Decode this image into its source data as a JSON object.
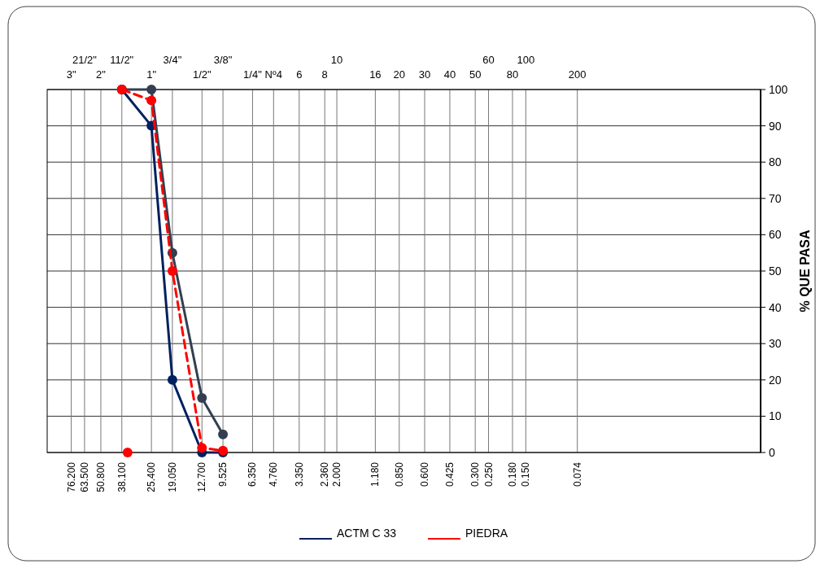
{
  "chart_data": {
    "type": "line",
    "log": "x",
    "xlim": [
      106,
      0.006
    ],
    "ylim": [
      0,
      100
    ],
    "xticks": [
      {
        "value": 76.2,
        "label": "76.200"
      },
      {
        "value": 63.5,
        "label": "63.500"
      },
      {
        "value": 50.8,
        "label": "50.800"
      },
      {
        "value": 38.1,
        "label": "38.100"
      },
      {
        "value": 25.4,
        "label": "25.400"
      },
      {
        "value": 19.05,
        "label": "19.050"
      },
      {
        "value": 12.7,
        "label": "12.700"
      },
      {
        "value": 9.525,
        "label": "9.525"
      },
      {
        "value": 6.35,
        "label": "6.350"
      },
      {
        "value": 4.76,
        "label": "4.760"
      },
      {
        "value": 3.35,
        "label": "3.350"
      },
      {
        "value": 2.36,
        "label": "2.360"
      },
      {
        "value": 2.0,
        "label": "2.000"
      },
      {
        "value": 1.18,
        "label": "1.180"
      },
      {
        "value": 0.85,
        "label": "0.850"
      },
      {
        "value": 0.6,
        "label": "0.600"
      },
      {
        "value": 0.425,
        "label": "0.425"
      },
      {
        "value": 0.3,
        "label": "0.300"
      },
      {
        "value": 0.25,
        "label": "0.250"
      },
      {
        "value": 0.18,
        "label": "0.180"
      },
      {
        "value": 0.15,
        "label": "0.150"
      },
      {
        "value": 0.074,
        "label": "0.074"
      }
    ],
    "annotations": [
      "3\"",
      "21/2\"",
      "2\"",
      "11/2\"",
      "1\"",
      "3/4\"",
      "1/2\"",
      "3/8\"",
      "1/4\"",
      "Nº4",
      "6",
      "8",
      "10",
      "16",
      "20",
      "30",
      "40",
      "50",
      "60",
      "80",
      "100",
      "200"
    ],
    "yticks": [
      0,
      10,
      20,
      30,
      40,
      50,
      60,
      70,
      80,
      90,
      100
    ],
    "ylabel": "% QUE PASA",
    "grid": true,
    "legend": "bottom",
    "marker": "circle",
    "series": [
      {
        "name": "ACTM C 33",
        "color": "#002060",
        "x": [
          38.1,
          25.4,
          19.05,
          12.7,
          9.525
        ],
        "values": [
          100,
          90,
          20,
          0,
          0
        ]
      },
      {
        "color": "#333f50",
        "x": [
          38.1,
          25.4,
          19.05,
          12.7,
          9.525
        ],
        "values": [
          100,
          100,
          55,
          15,
          5
        ]
      },
      {
        "name": "PIEDRA",
        "color": "#ff0000",
        "line_style": "dashed",
        "x": [
          38.1,
          25.4,
          19.05,
          12.7,
          9.525
        ],
        "values": [
          100,
          97,
          50,
          1.3,
          0.5
        ]
      },
      {
        "type": "scatter",
        "color": "#ff0000",
        "x": [
          35.2
        ],
        "values": [
          0
        ]
      }
    ]
  }
}
